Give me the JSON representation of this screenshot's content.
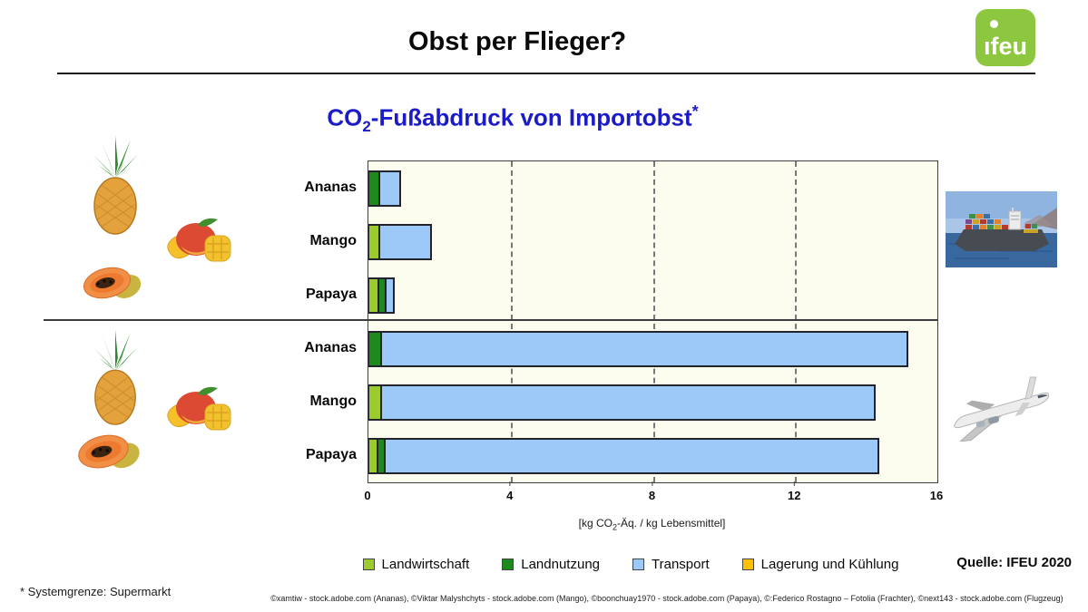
{
  "header": {
    "title": "Obst per Flieger?"
  },
  "logo": {
    "label": "ıfeu",
    "alt": "ifeu",
    "bg_color": "#8DC63F"
  },
  "subtitle": {
    "pre": "CO",
    "sub": "2",
    "post": "-Fußabdruck von Importobst",
    "star": "*",
    "color": "#1B1BC8"
  },
  "chart_data": {
    "type": "bar",
    "orientation": "horizontal",
    "title": "CO2-Fußabdruck von Importobst*",
    "xlabel_pre": "[kg CO",
    "xlabel_sub": "2",
    "xlabel_post": "-Äq. / kg Lebensmittel]",
    "xlim": [
      0,
      16
    ],
    "xticks": [
      0,
      4,
      8,
      12,
      16
    ],
    "gridlines_at": [
      4,
      8,
      12
    ],
    "grid_style": "dashed",
    "plot_bg": "#FDFDEF",
    "legend_position": "bottom",
    "segment_keys": [
      "Landwirtschaft",
      "Landnutzung",
      "Transport",
      "Lagerung und Kühlung"
    ],
    "segment_colors": [
      "#9CCB2D",
      "#1E8A1E",
      "#9CC9F7",
      "#FFC000"
    ],
    "groups": [
      {
        "transport_mode": "Frachter (Schiff)",
        "icon": "container-ship"
      },
      {
        "transport_mode": "Flugzeug",
        "icon": "airplane"
      }
    ],
    "rows": [
      {
        "group": 0,
        "label": "Ananas",
        "values": [
          0,
          0.25,
          0.6,
          0
        ],
        "total": 0.85
      },
      {
        "group": 0,
        "label": "Mango",
        "values": [
          0.25,
          0,
          1.45,
          0
        ],
        "total": 1.7
      },
      {
        "group": 0,
        "label": "Papaya",
        "values": [
          0.22,
          0.22,
          0.22,
          0
        ],
        "total": 0.66
      },
      {
        "group": 1,
        "label": "Ananas",
        "values": [
          0,
          0.3,
          14.8,
          0
        ],
        "total": 15.1
      },
      {
        "group": 1,
        "label": "Mango",
        "values": [
          0.3,
          0,
          13.9,
          0
        ],
        "total": 14.2
      },
      {
        "group": 1,
        "label": "Papaya",
        "values": [
          0.2,
          0.2,
          13.9,
          0
        ],
        "total": 14.3
      }
    ]
  },
  "source": {
    "text": "Quelle: IFEU 2020"
  },
  "footnote": {
    "text": "* Systemgrenze: Supermarkt"
  },
  "credits": {
    "text": "©xamtiw - stock.adobe.com (Ananas), ©Viktar Malyshchyts - stock.adobe.com (Mango), ©boonchuay1970 - stock.adobe.com (Papaya), ©:Federico Rostagno – Fotolia (Frachter), ©next143 - stock.adobe.com (Flugzeug)"
  }
}
